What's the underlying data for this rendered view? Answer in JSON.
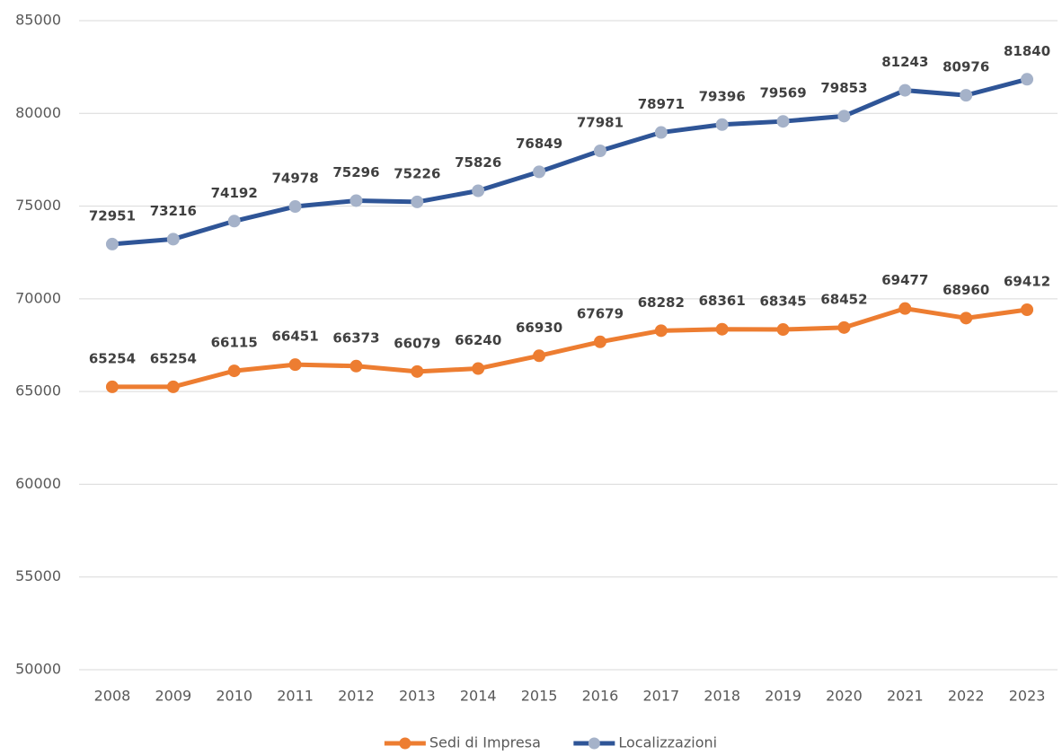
{
  "chart_data": {
    "type": "line",
    "categories": [
      "2008",
      "2009",
      "2010",
      "2011",
      "2012",
      "2013",
      "2014",
      "2015",
      "2016",
      "2017",
      "2018",
      "2019",
      "2020",
      "2021",
      "2022",
      "2023"
    ],
    "series": [
      {
        "name": "Sedi di Impresa",
        "color": "#ed7d31",
        "marker_color": "#ed7d31",
        "values": [
          65254,
          65254,
          66115,
          66451,
          66373,
          66079,
          66240,
          66930,
          67679,
          68282,
          68361,
          68345,
          68452,
          69477,
          68960,
          69412
        ]
      },
      {
        "name": "Localizzazioni",
        "color": "#2f5597",
        "marker_color": "#a5b2c9",
        "values": [
          72951,
          73216,
          74192,
          74978,
          75296,
          75226,
          75826,
          76849,
          77981,
          78971,
          79396,
          79569,
          79853,
          81243,
          80976,
          81840
        ]
      }
    ],
    "ylim": [
      50000,
      85000
    ],
    "yticks": [
      50000,
      55000,
      60000,
      65000,
      70000,
      75000,
      80000,
      85000
    ],
    "grid": true,
    "legend": "bottom"
  }
}
